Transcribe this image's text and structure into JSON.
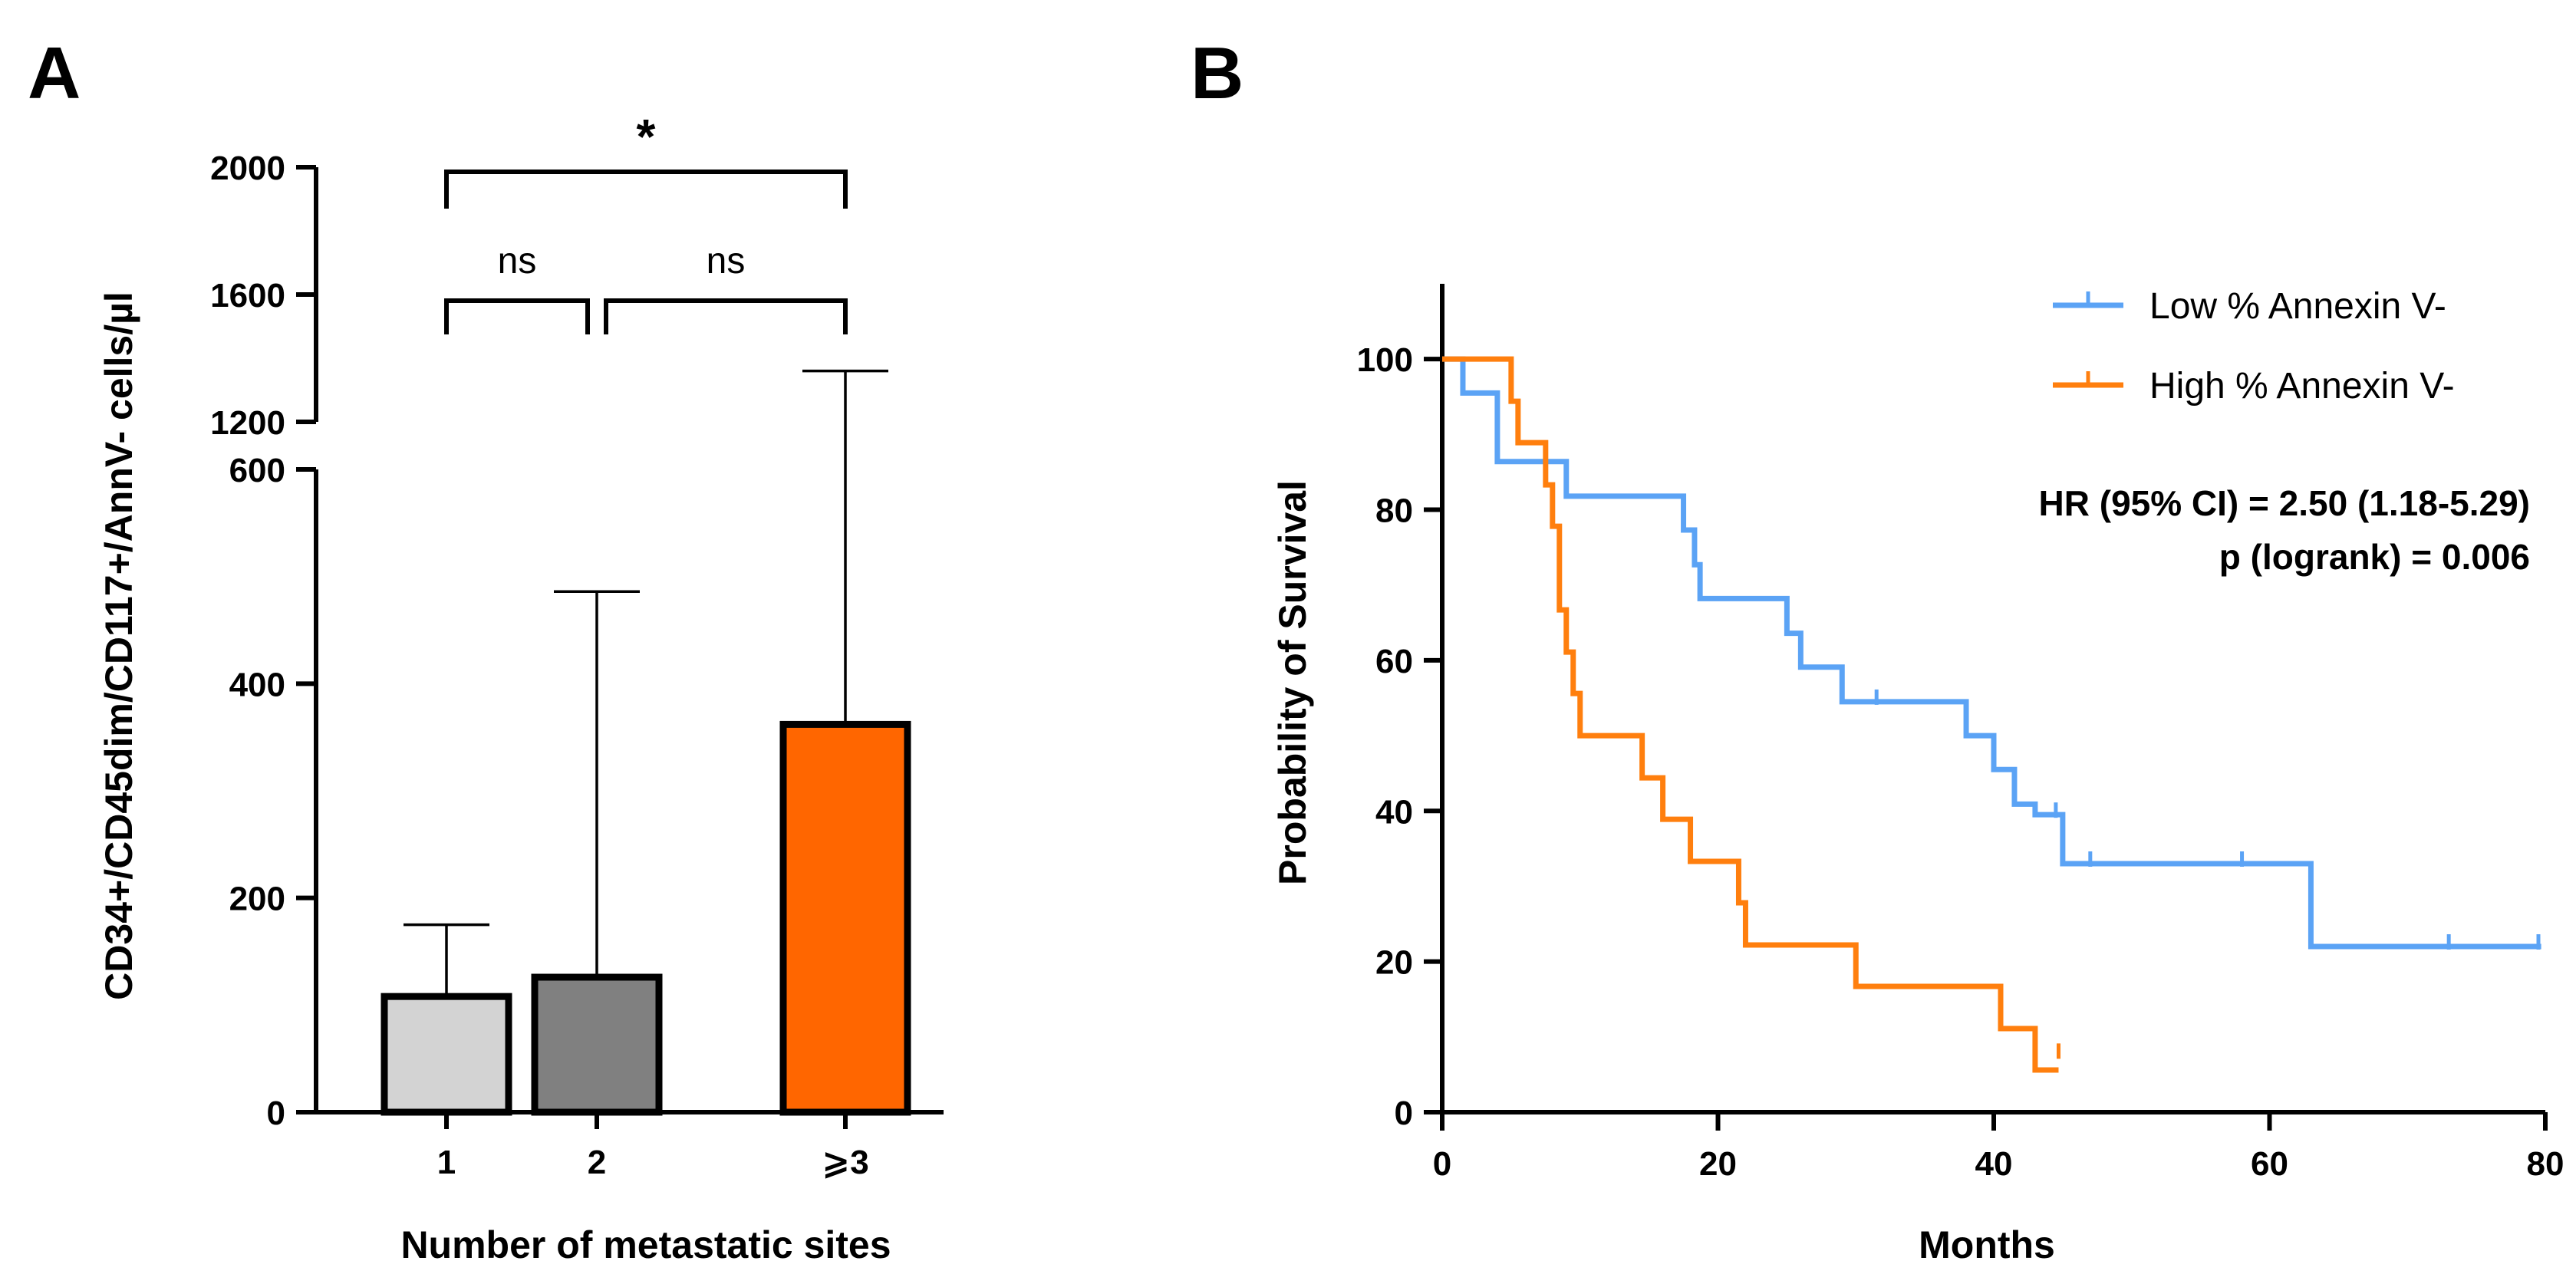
{
  "figure": {
    "panels": [
      {
        "label": "A"
      },
      {
        "label": "B"
      }
    ]
  },
  "chart_data": [
    {
      "type": "bar",
      "categories": [
        "1",
        "2",
        "⩾3"
      ],
      "series": [
        {
          "values": [
            108,
            126,
            362
          ],
          "error_upper": [
            175,
            486,
            1360
          ]
        }
      ],
      "colors": [
        "#d3d3d3",
        "#808080",
        "#ff6600"
      ],
      "xlabel": "Number of metastatic sites",
      "ylabel": "CD34+/CD45dim/CD117+/AnnV- cells/µl",
      "y_axis_break": {
        "lower_range": [
          0,
          600
        ],
        "upper_range": [
          1200,
          2000
        ]
      },
      "yticks_lower": [
        "0",
        "200",
        "400",
        "600"
      ],
      "yticks_upper": [
        "1200",
        "1600",
        "2000"
      ],
      "significance": [
        {
          "from": "1",
          "to": "2",
          "label": "ns"
        },
        {
          "from": "2",
          "to": "⩾3",
          "label": "ns"
        },
        {
          "from": "1",
          "to": "⩾3",
          "label": "*"
        }
      ],
      "grid": false
    },
    {
      "type": "line",
      "step": true,
      "xlabel": "Months",
      "ylabel": "Probability of Survival",
      "xlim": [
        0,
        80
      ],
      "ylim": [
        0,
        110
      ],
      "xticks": [
        "0",
        "20",
        "40",
        "60",
        "80"
      ],
      "yticks": [
        "0",
        "20",
        "40",
        "60",
        "80",
        "100"
      ],
      "legend_position": "top-right",
      "series": [
        {
          "name": "Low % Annexin V-",
          "color": "#5ba3f5",
          "steps": [
            [
              0,
              100
            ],
            [
              1.5,
              95.5
            ],
            [
              4,
              86.4
            ],
            [
              9,
              81.8
            ],
            [
              17.5,
              77.3
            ],
            [
              18.3,
              72.7
            ],
            [
              18.7,
              68.2
            ],
            [
              25,
              63.6
            ],
            [
              26,
              59.1
            ],
            [
              29,
              54.5
            ],
            [
              38,
              50
            ],
            [
              40,
              45.5
            ],
            [
              41.5,
              40.9
            ],
            [
              43,
              39.5
            ],
            [
              45,
              33
            ],
            [
              63,
              22
            ],
            [
              79.7,
              22
            ]
          ],
          "censored": [
            [
              31.5,
              54.5
            ],
            [
              44.5,
              39.5
            ],
            [
              47,
              33
            ],
            [
              58,
              33
            ],
            [
              73,
              22
            ],
            [
              79.5,
              22
            ]
          ]
        },
        {
          "name": "High % Annexin V-",
          "color": "#ff7f0e",
          "steps": [
            [
              0,
              100
            ],
            [
              5,
              94.4
            ],
            [
              5.5,
              88.9
            ],
            [
              7.5,
              83.3
            ],
            [
              8,
              77.8
            ],
            [
              8.5,
              66.7
            ],
            [
              9,
              61.1
            ],
            [
              9.5,
              55.6
            ],
            [
              10,
              50
            ],
            [
              14.5,
              44.4
            ],
            [
              16,
              38.9
            ],
            [
              18,
              33.3
            ],
            [
              21.5,
              27.8
            ],
            [
              22,
              22.2
            ],
            [
              30,
              16.7
            ],
            [
              40.5,
              11.1
            ],
            [
              43,
              5.6
            ],
            [
              44.7,
              5.6
            ]
          ],
          "censored": [
            [
              44.7,
              7.5
            ]
          ]
        }
      ],
      "annotations": [
        "HR (95% CI) = 2.50 (1.18-5.29)",
        "p (logrank) = 0.006"
      ],
      "grid": false
    }
  ]
}
